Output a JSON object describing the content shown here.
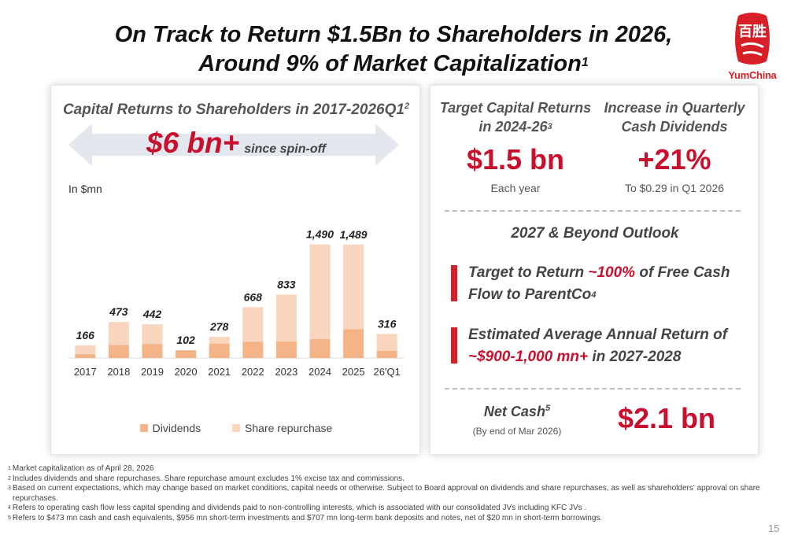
{
  "header": {
    "title_line1": "On Track to Return $1.5Bn to Shareholders in 2026,",
    "title_line2": "Around 9% of Market Capitalization",
    "title_sup": "1"
  },
  "logo": {
    "text": "YumChina",
    "seal_text": "百胜"
  },
  "left_panel": {
    "chart_title": "Capital Returns to Shareholders in 2017-2026Q1",
    "chart_title_sup": "2",
    "highlight_value": "$6 bn+",
    "highlight_sub": "since spin-off",
    "unit_label": "In $mn"
  },
  "chart_data": {
    "type": "bar",
    "stacked": true,
    "categories": [
      "2017",
      "2018",
      "2019",
      "2020",
      "2021",
      "2022",
      "2023",
      "2024",
      "2025",
      "26'Q1"
    ],
    "totals": [
      166,
      473,
      442,
      102,
      278,
      668,
      833,
      1490,
      1489,
      316
    ],
    "total_labels": [
      "166",
      "473",
      "442",
      "102",
      "278",
      "668",
      "833",
      "1,490",
      "1,489",
      "316"
    ],
    "series": [
      {
        "name": "Dividends",
        "color": "#f5b388",
        "values": [
          50,
          170,
          185,
          102,
          190,
          215,
          220,
          250,
          380,
          95
        ]
      },
      {
        "name": "Share repurchase",
        "color": "#f9d5be",
        "values": [
          116,
          303,
          257,
          0,
          88,
          453,
          613,
          1240,
          1109,
          221
        ]
      }
    ],
    "ylim": [
      0,
      1600
    ],
    "legend_position": "bottom"
  },
  "right_panel": {
    "target": {
      "heading_line1": "Target Capital Returns",
      "heading_line2": "in 2024-26",
      "heading_sup": "3",
      "value": "$1.5 bn",
      "sub": "Each year"
    },
    "dividend": {
      "heading_line1": "Increase in Quarterly",
      "heading_line2": "Cash Dividends",
      "value": "+21%",
      "sub": "To $0.29 in Q1 2026"
    },
    "outlook_title": "2027 & Beyond Outlook",
    "bullet1": {
      "pre": "Target to Return ",
      "highlight": "~100%",
      "post": " of Free Cash Flow to ParentCo",
      "sup": "4"
    },
    "bullet2": {
      "pre": "Estimated Average Annual Return of ",
      "highlight": "~$900-1,000 mn+",
      "post": " in 2027-2028"
    },
    "net_cash": {
      "label": "Net Cash",
      "sup": "5",
      "sub": "(By end of Mar 2026)",
      "value": "$2.1 bn"
    }
  },
  "footnotes": [
    {
      "num": "1",
      "text": "Market capitalization as of April 28, 2026"
    },
    {
      "num": "2",
      "text": "Includes dividends and share repurchases. Share repurchase amount excludes 1% excise tax and commissions."
    },
    {
      "num": "3",
      "text": "Based on current expectations, which may change based on market conditions, capital needs or otherwise. Subject to Board approval on dividends and share repurchases, as well as shareholders' approval on share repurchases."
    },
    {
      "num": "4",
      "text": "Refers to operating cash flow less capital spending and dividends paid to non-controlling interests, which is associated with our consolidated JVs including KFC JVs ."
    },
    {
      "num": "5",
      "text": "Refers to $473 mn cash and cash equivalents, $956 mn short-term investments and $707 mn long-term bank deposits and notes, net of $20 mn in short-term borrowings."
    }
  ],
  "page_number": "15"
}
